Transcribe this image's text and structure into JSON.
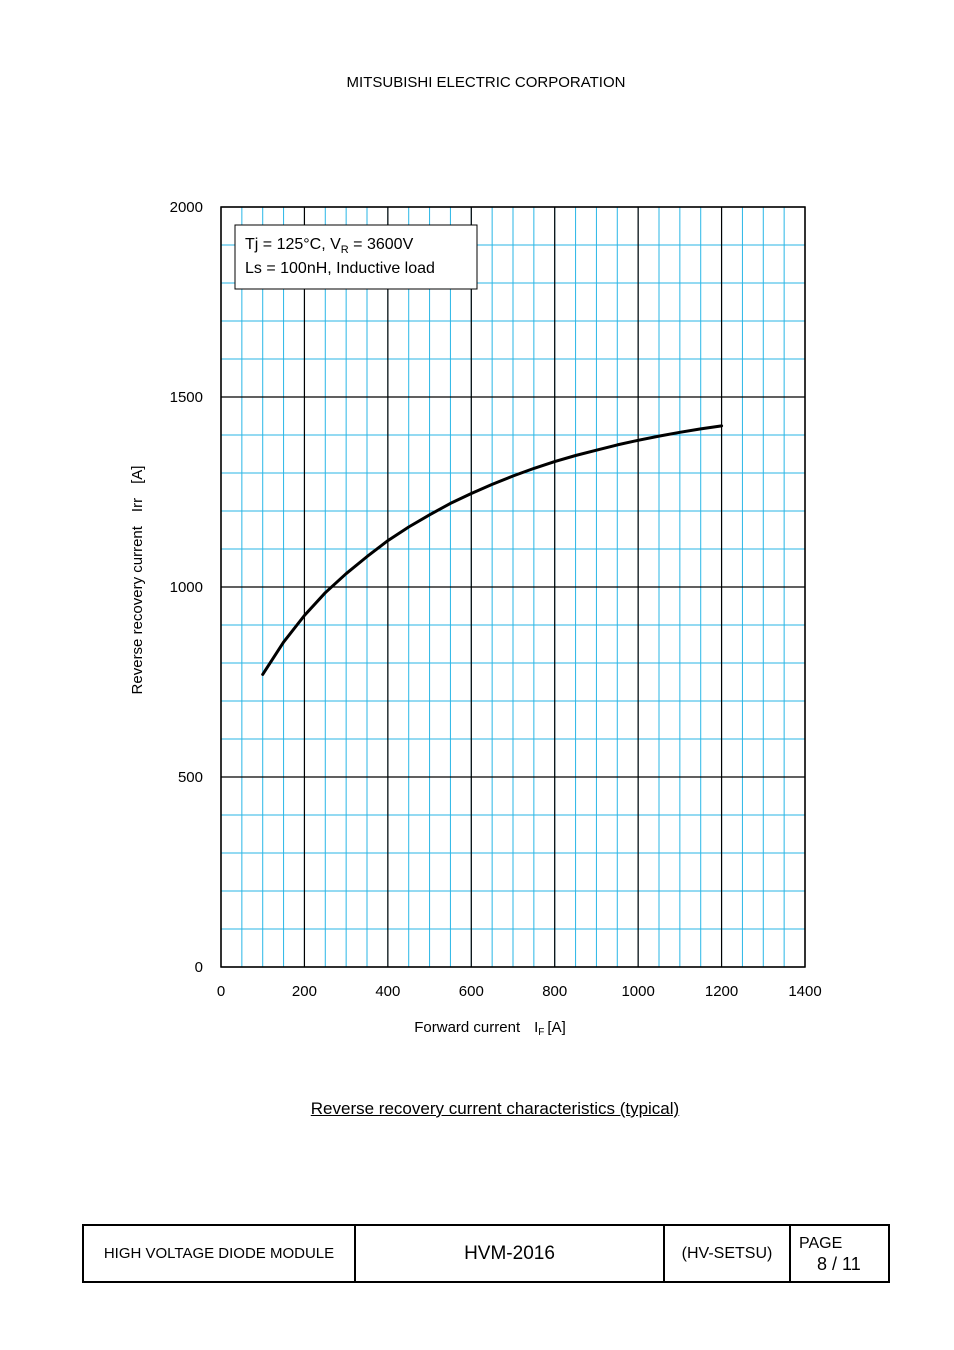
{
  "header": {
    "company": "MITSUBISHI ELECTRIC CORPORATION"
  },
  "chart_data": {
    "type": "line",
    "title": "Reverse recovery current characteristics (typical)",
    "xlabel": "Forward current",
    "xlabel_symbol": "I",
    "xlabel_sub": "F",
    "xlabel_unit": "[A]",
    "ylabel": "Reverse recovery current",
    "ylabel_symbol": "Irr",
    "ylabel_unit": "[A]",
    "xlim": [
      0,
      1400
    ],
    "ylim": [
      0,
      2000
    ],
    "x_ticks": [
      0,
      200,
      400,
      600,
      800,
      1000,
      1200,
      1400
    ],
    "y_ticks": [
      0,
      500,
      1000,
      1500,
      2000
    ],
    "x_minor_step": 50,
    "y_minor_step": 100,
    "grid": true,
    "grid_color": "#29b6e6",
    "line_color": "#000000",
    "annotation": {
      "line1_prefix": "Tj = 125°C, V",
      "line1_sub": "R",
      "line1_suffix": " = 3600V",
      "line2": "Ls = 100nH, Inductive load"
    },
    "series": [
      {
        "x": [
          100,
          150,
          200,
          250,
          300,
          350,
          400,
          450,
          500,
          550,
          600,
          650,
          700,
          750,
          800,
          850,
          900,
          950,
          1000,
          1050,
          1100,
          1150,
          1200
        ],
        "y": [
          770,
          855,
          925,
          985,
          1035,
          1080,
          1122,
          1158,
          1190,
          1220,
          1246,
          1270,
          1292,
          1312,
          1330,
          1346,
          1360,
          1374,
          1386,
          1397,
          1407,
          1416,
          1424
        ]
      }
    ]
  },
  "footer": {
    "product": "HIGH VOLTAGE DIODE MODULE",
    "code": "HVM-2016",
    "series": "(HV-SETSU)",
    "page_label": "PAGE",
    "page_number": "8 / 11"
  }
}
